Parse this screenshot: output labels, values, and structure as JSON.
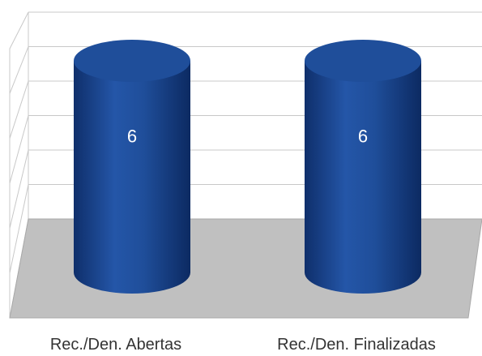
{
  "chart_data": {
    "type": "bar",
    "style": "3d-cylinder",
    "categories": [
      "Rec./Den. Abertas",
      "Rec./Den. Finalizadas"
    ],
    "values": [
      6,
      6
    ],
    "data_labels": [
      "6",
      "6"
    ],
    "title": "",
    "xlabel": "",
    "ylabel": "",
    "grid": true,
    "colors": {
      "bar": "#1f4e9a",
      "bar_dark": "#0f2f6b",
      "floor": "#c0c0c0",
      "grid": "#c8c8c8"
    }
  }
}
